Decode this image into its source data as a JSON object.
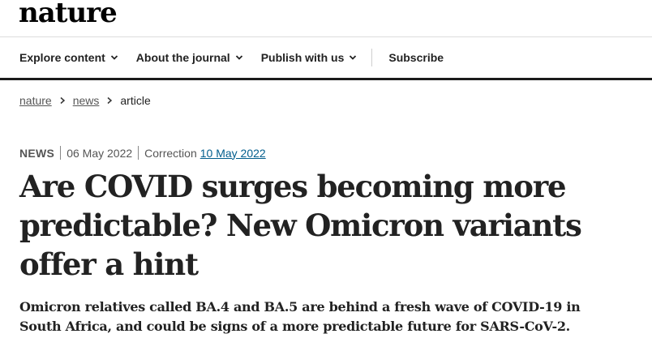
{
  "site": {
    "logo": "nature"
  },
  "nav": {
    "items": [
      {
        "label": "Explore content"
      },
      {
        "label": "About the journal"
      },
      {
        "label": "Publish with us"
      }
    ],
    "subscribe_label": "Subscribe"
  },
  "breadcrumb": {
    "items": [
      "nature",
      "news"
    ],
    "current": "article"
  },
  "article": {
    "type": "NEWS",
    "published": "06 May 2022",
    "correction_label": "Correction",
    "correction_date": "10 May 2022",
    "title": "Are COVID surges becoming more predictable? New Omicron variants offer a hint",
    "standfirst": "Omicron relatives called BA.4 and BA.5 are behind a fresh wave of COVID-19 in South Africa, and could be signs of a more predictable future for SARS-CoV-2."
  }
}
